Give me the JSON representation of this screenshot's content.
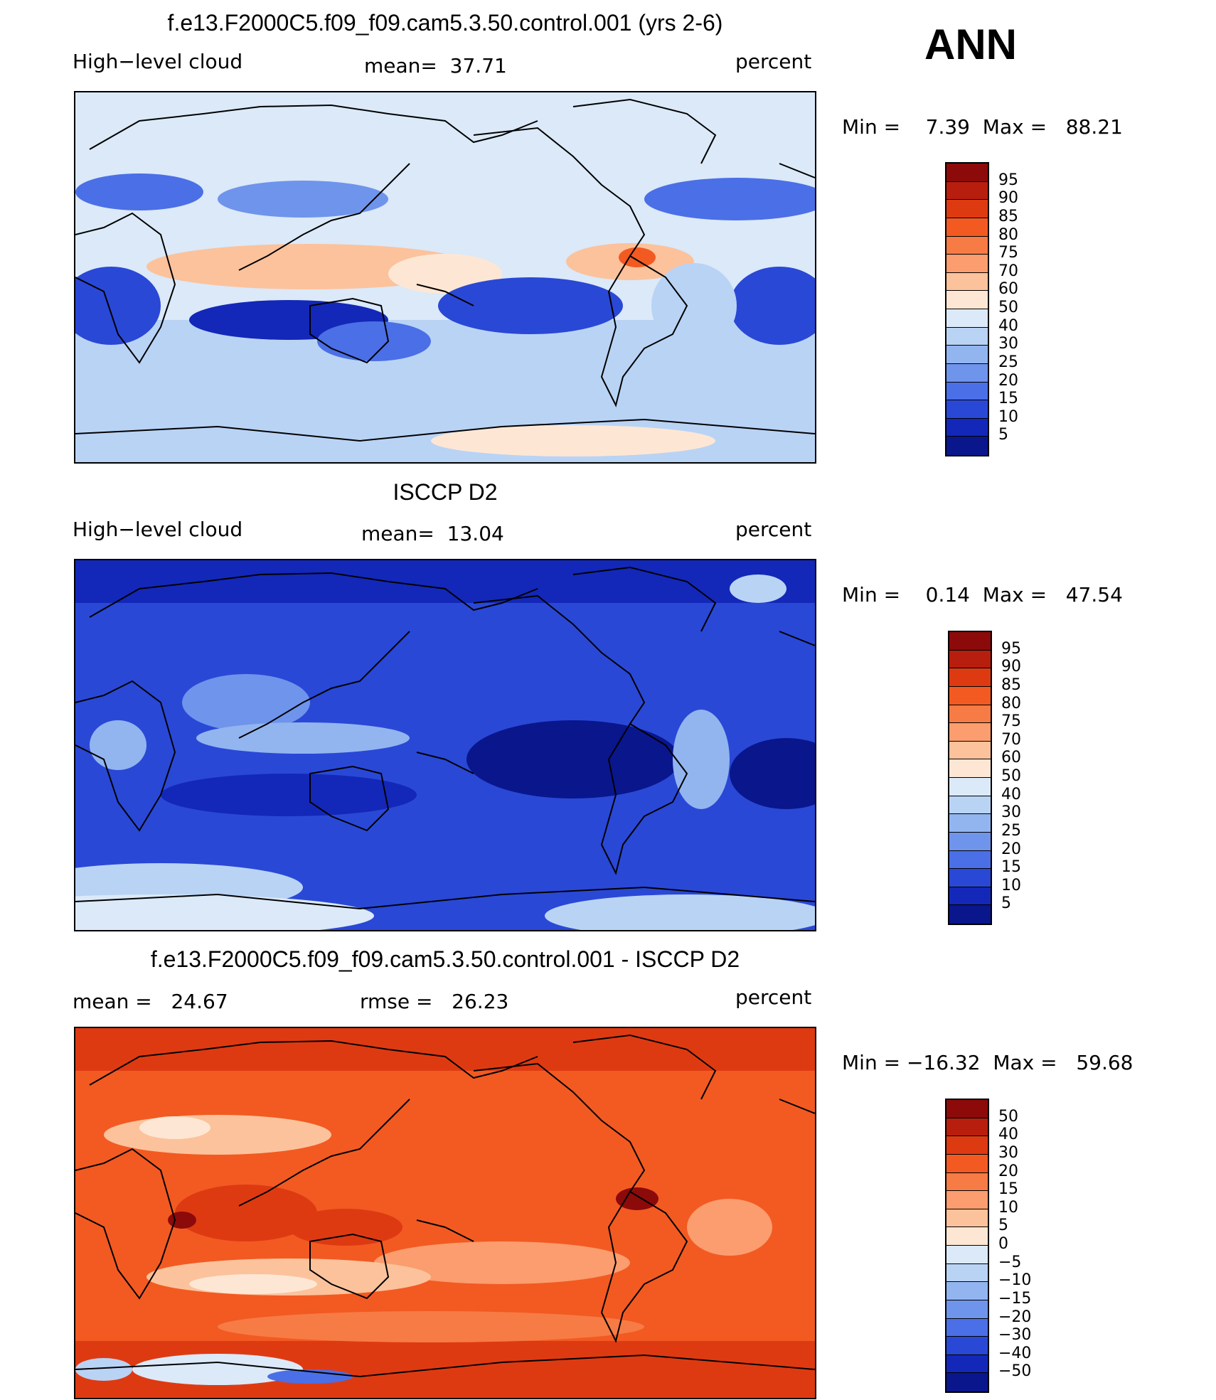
{
  "ann_label": "ANN",
  "panels": [
    {
      "title": "f.e13.F2000C5.f09_f09.cam5.3.50.control.001 (yrs 2-6)",
      "left_label": "High−level cloud",
      "center_label": "mean=  37.71",
      "right_label": "percent",
      "minmax": "Min =    7.39  Max =   88.21",
      "ticks": [
        "95",
        "90",
        "85",
        "80",
        "75",
        "70",
        "60",
        "50",
        "40",
        "30",
        "25",
        "20",
        "15",
        "10",
        "5"
      ],
      "colors": [
        "#8c0a0a",
        "#b81e0e",
        "#de3a12",
        "#f25a22",
        "#f77b44",
        "#fb9d6e",
        "#fcc29c",
        "#fde7d4",
        "#dbe9f8",
        "#b9d3f5",
        "#92b5f0",
        "#6f94ec",
        "#4b6fe6",
        "#2a48d6",
        "#1328b8",
        "#0a168c"
      ]
    },
    {
      "title": "ISCCP D2",
      "left_label": "High−level cloud",
      "center_label": "mean=  13.04",
      "right_label": "percent",
      "minmax": "Min =    0.14  Max =   47.54",
      "ticks": [
        "95",
        "90",
        "85",
        "80",
        "75",
        "70",
        "60",
        "50",
        "40",
        "30",
        "25",
        "20",
        "15",
        "10",
        "5"
      ],
      "colors": [
        "#8c0a0a",
        "#b81e0e",
        "#de3a12",
        "#f25a22",
        "#f77b44",
        "#fb9d6e",
        "#fcc29c",
        "#fde7d4",
        "#dbe9f8",
        "#b9d3f5",
        "#92b5f0",
        "#6f94ec",
        "#4b6fe6",
        "#2a48d6",
        "#1328b8",
        "#0a168c"
      ]
    },
    {
      "title": "f.e13.F2000C5.f09_f09.cam5.3.50.control.001 - ISCCP D2",
      "left_label": "mean =   24.67",
      "center_label": "rmse =   26.23",
      "right_label": "percent",
      "minmax": "Min = −16.32  Max =   59.68",
      "ticks": [
        "50",
        "40",
        "30",
        "20",
        "15",
        "10",
        "5",
        "0",
        "−5",
        "−10",
        "−15",
        "−20",
        "−30",
        "−40",
        "−50"
      ],
      "colors": [
        "#8c0a0a",
        "#b81e0e",
        "#de3a12",
        "#f25a22",
        "#f77b44",
        "#fb9d6e",
        "#fcc29c",
        "#fde7d4",
        "#dbe9f8",
        "#b9d3f5",
        "#92b5f0",
        "#6f94ec",
        "#4b6fe6",
        "#2a48d6",
        "#1328b8",
        "#0a168c"
      ]
    }
  ]
}
